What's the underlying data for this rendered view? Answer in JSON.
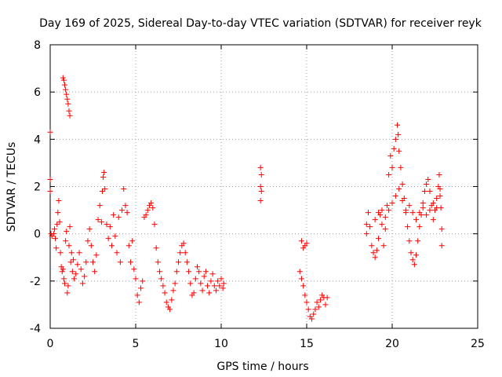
{
  "chart_data": {
    "type": "scatter",
    "title": "Day 169 of 2025, Sidereal Day-to-day VTEC variation (SDTVAR) for receiver reyk",
    "xlabel": "GPS time / hours",
    "ylabel": "SDTVAR / TECUs",
    "xlim": [
      0,
      25
    ],
    "ylim": [
      -4,
      8
    ],
    "xticks": [
      0,
      5,
      10,
      15,
      20,
      25
    ],
    "yticks": [
      -4,
      -2,
      0,
      2,
      4,
      6,
      8
    ],
    "grid": true,
    "marker": "+",
    "color": "#ff0000",
    "series": [
      {
        "name": "SDTVAR",
        "points": [
          [
            0.0,
            4.3
          ],
          [
            0.0,
            2.3
          ],
          [
            0.0,
            1.8
          ],
          [
            0.05,
            0.0
          ],
          [
            0.1,
            -0.1
          ],
          [
            0.2,
            0.0
          ],
          [
            0.25,
            0.2
          ],
          [
            0.3,
            -0.2
          ],
          [
            0.35,
            -0.6
          ],
          [
            0.4,
            0.4
          ],
          [
            0.45,
            0.9
          ],
          [
            0.5,
            1.4
          ],
          [
            0.55,
            0.5
          ],
          [
            0.6,
            -0.8
          ],
          [
            0.65,
            -1.4
          ],
          [
            0.7,
            -1.6
          ],
          [
            0.75,
            -1.5
          ],
          [
            0.8,
            -1.9
          ],
          [
            0.85,
            -2.1
          ],
          [
            0.9,
            -0.3
          ],
          [
            0.95,
            0.1
          ],
          [
            1.0,
            -2.5
          ],
          [
            1.05,
            -2.2
          ],
          [
            1.1,
            -0.5
          ],
          [
            1.15,
            0.3
          ],
          [
            1.2,
            -1.2
          ],
          [
            1.25,
            -0.8
          ],
          [
            1.3,
            -1.6
          ],
          [
            1.35,
            -1.1
          ],
          [
            1.4,
            -1.9
          ],
          [
            1.5,
            -1.7
          ],
          [
            1.6,
            -1.3
          ],
          [
            1.7,
            -0.8
          ],
          [
            1.8,
            -1.5
          ],
          [
            1.9,
            -2.1
          ],
          [
            2.0,
            -1.8
          ],
          [
            2.1,
            -1.2
          ],
          [
            2.2,
            -0.3
          ],
          [
            2.3,
            0.2
          ],
          [
            2.4,
            -0.5
          ],
          [
            2.5,
            -1.2
          ],
          [
            2.6,
            -1.6
          ],
          [
            2.7,
            -0.9
          ],
          [
            2.8,
            0.6
          ],
          [
            2.9,
            1.2
          ],
          [
            3.0,
            0.5
          ],
          [
            3.05,
            1.8
          ],
          [
            3.1,
            2.4
          ],
          [
            3.15,
            2.6
          ],
          [
            3.2,
            1.9
          ],
          [
            3.3,
            0.4
          ],
          [
            3.4,
            -0.2
          ],
          [
            3.5,
            0.3
          ],
          [
            3.6,
            -0.5
          ],
          [
            3.7,
            0.8
          ],
          [
            3.8,
            -0.1
          ],
          [
            3.9,
            -0.8
          ],
          [
            4.0,
            0.7
          ],
          [
            4.1,
            -1.2
          ],
          [
            4.2,
            1.0
          ],
          [
            4.3,
            1.9
          ],
          [
            4.4,
            1.2
          ],
          [
            4.5,
            0.9
          ],
          [
            4.6,
            -0.5
          ],
          [
            4.7,
            -1.2
          ],
          [
            4.8,
            -0.3
          ],
          [
            4.9,
            -1.5
          ],
          [
            5.0,
            -1.9
          ],
          [
            5.1,
            -2.6
          ],
          [
            5.2,
            -2.9
          ],
          [
            5.3,
            -2.3
          ],
          [
            5.4,
            -2.0
          ],
          [
            5.5,
            0.7
          ],
          [
            5.6,
            0.8
          ],
          [
            5.7,
            1.0
          ],
          [
            5.8,
            1.2
          ],
          [
            5.9,
            1.3
          ],
          [
            6.0,
            1.1
          ],
          [
            6.1,
            0.4
          ],
          [
            6.2,
            -0.6
          ],
          [
            6.3,
            -1.2
          ],
          [
            6.4,
            -1.6
          ],
          [
            6.5,
            -1.9
          ],
          [
            6.6,
            -2.2
          ],
          [
            6.7,
            -2.5
          ],
          [
            6.8,
            -2.9
          ],
          [
            6.9,
            -3.1
          ],
          [
            7.0,
            -3.2
          ],
          [
            7.1,
            -2.8
          ],
          [
            7.2,
            -2.4
          ],
          [
            7.3,
            -2.1
          ],
          [
            7.4,
            -1.6
          ],
          [
            7.5,
            -1.2
          ],
          [
            7.6,
            -0.8
          ],
          [
            7.7,
            -0.5
          ],
          [
            7.8,
            -0.4
          ],
          [
            7.9,
            -0.8
          ],
          [
            8.0,
            -1.2
          ],
          [
            8.1,
            -1.6
          ],
          [
            8.2,
            -2.1
          ],
          [
            8.3,
            -2.6
          ],
          [
            8.4,
            -2.5
          ],
          [
            8.5,
            -1.9
          ],
          [
            8.6,
            -1.4
          ],
          [
            8.7,
            -1.6
          ],
          [
            8.8,
            -2.1
          ],
          [
            8.9,
            -2.4
          ],
          [
            9.0,
            -1.8
          ],
          [
            9.1,
            -1.6
          ],
          [
            9.2,
            -2.2
          ],
          [
            9.3,
            -2.5
          ],
          [
            9.4,
            -2.0
          ],
          [
            9.5,
            -1.7
          ],
          [
            9.6,
            -2.2
          ],
          [
            9.7,
            -2.4
          ],
          [
            9.8,
            -2.0
          ],
          [
            9.9,
            -2.2
          ],
          [
            10.0,
            -1.9
          ],
          [
            10.1,
            -2.3
          ],
          [
            10.15,
            -2.1
          ],
          [
            0.75,
            6.6
          ],
          [
            0.8,
            6.5
          ],
          [
            0.85,
            6.3
          ],
          [
            0.9,
            6.1
          ],
          [
            0.95,
            5.9
          ],
          [
            1.0,
            5.7
          ],
          [
            1.05,
            5.5
          ],
          [
            1.1,
            5.2
          ],
          [
            1.15,
            5.0
          ],
          [
            12.3,
            2.8
          ],
          [
            12.35,
            2.5
          ],
          [
            12.3,
            2.0
          ],
          [
            12.35,
            1.8
          ],
          [
            12.3,
            1.4
          ],
          [
            14.7,
            -0.3
          ],
          [
            14.8,
            -0.6
          ],
          [
            14.9,
            -0.5
          ],
          [
            15.0,
            -0.4
          ],
          [
            14.6,
            -1.6
          ],
          [
            14.7,
            -1.9
          ],
          [
            14.8,
            -2.2
          ],
          [
            14.9,
            -2.6
          ],
          [
            15.0,
            -2.9
          ],
          [
            15.1,
            -3.2
          ],
          [
            15.2,
            -3.5
          ],
          [
            15.3,
            -3.6
          ],
          [
            15.4,
            -3.4
          ],
          [
            15.5,
            -3.2
          ],
          [
            15.6,
            -2.9
          ],
          [
            15.7,
            -3.1
          ],
          [
            15.8,
            -2.8
          ],
          [
            15.9,
            -2.6
          ],
          [
            16.0,
            -2.7
          ],
          [
            16.1,
            -3.0
          ],
          [
            16.2,
            -2.7
          ],
          [
            18.5,
            0.4
          ],
          [
            18.5,
            0.0
          ],
          [
            18.6,
            0.9
          ],
          [
            18.7,
            0.3
          ],
          [
            18.8,
            -0.5
          ],
          [
            18.9,
            -0.8
          ],
          [
            19.0,
            -1.0
          ],
          [
            19.1,
            -0.7
          ],
          [
            19.2,
            -0.2
          ],
          [
            19.3,
            0.8
          ],
          [
            19.4,
            0.4
          ],
          [
            19.5,
            -0.5
          ],
          [
            19.6,
            0.2
          ],
          [
            19.7,
            1.2
          ],
          [
            19.8,
            2.5
          ],
          [
            19.9,
            3.3
          ],
          [
            20.0,
            2.8
          ],
          [
            20.1,
            3.6
          ],
          [
            20.2,
            4.0
          ],
          [
            20.3,
            4.6
          ],
          [
            20.35,
            4.2
          ],
          [
            20.4,
            3.5
          ],
          [
            20.5,
            2.8
          ],
          [
            20.6,
            2.1
          ],
          [
            20.7,
            1.5
          ],
          [
            20.8,
            0.9
          ],
          [
            20.9,
            0.3
          ],
          [
            21.0,
            -0.3
          ],
          [
            21.1,
            -0.8
          ],
          [
            21.2,
            -1.1
          ],
          [
            21.3,
            -1.3
          ],
          [
            21.4,
            -0.9
          ],
          [
            21.5,
            -0.3
          ],
          [
            21.6,
            0.3
          ],
          [
            21.7,
            0.8
          ],
          [
            21.8,
            1.3
          ],
          [
            21.9,
            1.8
          ],
          [
            22.0,
            2.1
          ],
          [
            22.1,
            2.3
          ],
          [
            22.2,
            1.8
          ],
          [
            22.3,
            1.2
          ],
          [
            22.4,
            0.6
          ],
          [
            22.5,
            1.0
          ],
          [
            22.6,
            1.5
          ],
          [
            22.7,
            2.0
          ],
          [
            22.75,
            2.5
          ],
          [
            22.8,
            1.9
          ],
          [
            22.85,
            1.1
          ],
          [
            22.9,
            0.2
          ],
          [
            22.9,
            -0.5
          ],
          [
            19.0,
            0.6
          ],
          [
            19.2,
            0.9
          ],
          [
            19.4,
            1.0
          ],
          [
            19.6,
            0.7
          ],
          [
            19.8,
            1.0
          ],
          [
            20.0,
            1.3
          ],
          [
            20.2,
            1.6
          ],
          [
            20.4,
            1.9
          ],
          [
            20.6,
            1.4
          ],
          [
            20.8,
            1.0
          ],
          [
            21.0,
            1.2
          ],
          [
            21.2,
            0.9
          ],
          [
            21.4,
            0.6
          ],
          [
            21.6,
            0.9
          ],
          [
            21.8,
            1.1
          ],
          [
            22.0,
            0.8
          ],
          [
            22.2,
            1.0
          ],
          [
            22.4,
            1.3
          ],
          [
            22.6,
            1.1
          ],
          [
            22.8,
            1.6
          ]
        ]
      }
    ]
  }
}
